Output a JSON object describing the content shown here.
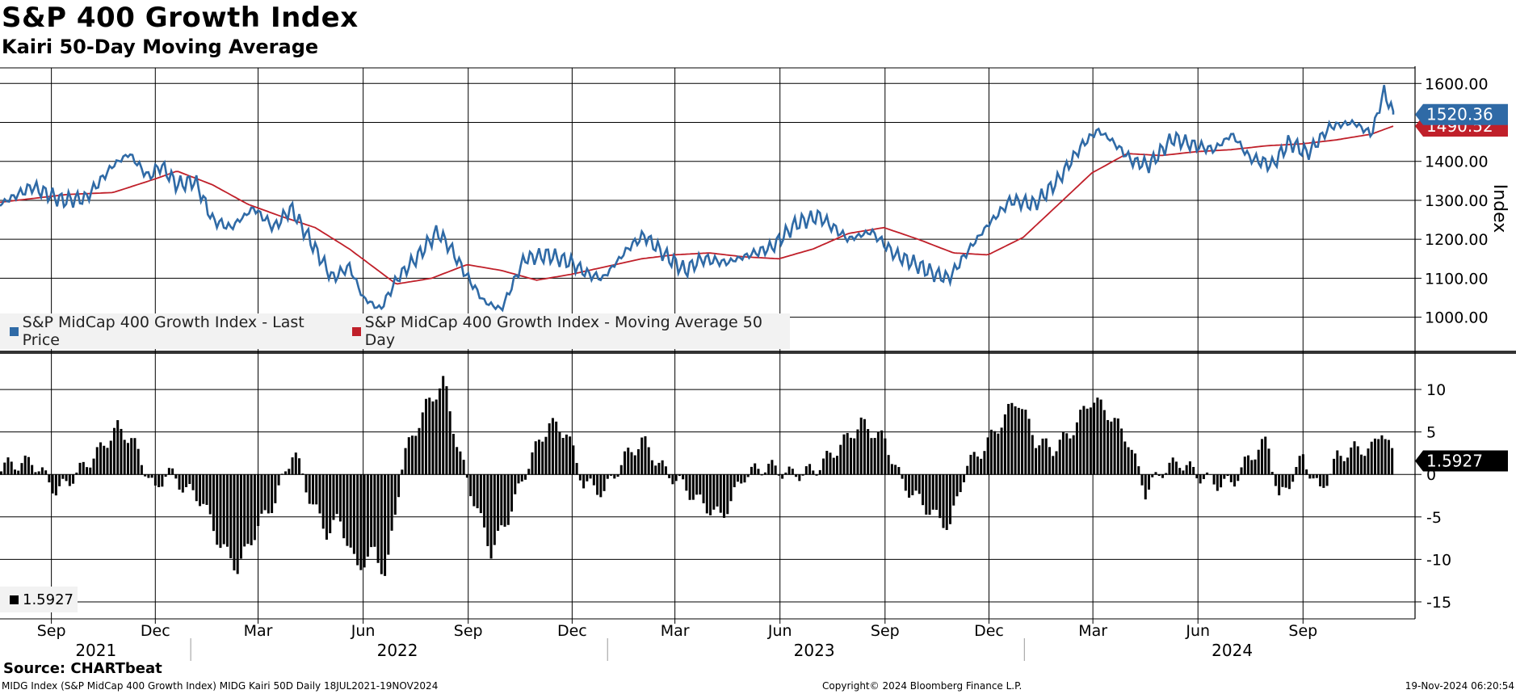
{
  "title": "S&P 400 Growth Index",
  "subtitle": "Kairi 50-Day Moving Average",
  "source": "Source: CHARTbeat",
  "footer": {
    "left": "MIDG Index (S&P MidCap 400 Growth Index) MIDG Kairi 50D  Daily 18JUL2021-19NOV2024",
    "center": "Copyright© 2024 Bloomberg Finance L.P.",
    "right": "19-Nov-2024 06:20:54"
  },
  "legend": {
    "price": "S&P MidCap 400 Growth Index - Last Price",
    "ma": "S&P MidCap 400 Growth Index - Moving Average 50 Day",
    "kairi": "1.5927"
  },
  "colors": {
    "price": "#2f6aa6",
    "ma": "#c0202a",
    "kairi": "#000000",
    "grid": "#000000"
  },
  "chart_data": [
    {
      "type": "line",
      "ylabel": "Index",
      "ylim": [
        910,
        1640
      ],
      "yticks": [
        "1000.00",
        "1100.00",
        "1200.00",
        "1300.00",
        "1400.00",
        "1500.00",
        "1600.00"
      ],
      "ytick_values": [
        1000,
        1100,
        1200,
        1300,
        1400,
        1500,
        1600
      ],
      "last_price_label": "1520.36",
      "ma_label": "1490.52",
      "last_price_value": 1520.36,
      "ma_value": 1490.52,
      "x_range": [
        "2021-07-18",
        "2024-11-19"
      ],
      "series": [
        {
          "name": "S&P MidCap 400 Growth Index - Last Price",
          "x": [
            "2021-07-18",
            "2021-08-15",
            "2021-09-10",
            "2021-10-01",
            "2021-10-25",
            "2021-11-08",
            "2021-11-25",
            "2021-12-06",
            "2021-12-20",
            "2022-01-05",
            "2022-01-20",
            "2022-02-05",
            "2022-02-25",
            "2022-03-15",
            "2022-03-30",
            "2022-04-15",
            "2022-05-05",
            "2022-05-20",
            "2022-06-01",
            "2022-06-16",
            "2022-07-01",
            "2022-07-20",
            "2022-08-05",
            "2022-08-16",
            "2022-09-01",
            "2022-09-15",
            "2022-09-30",
            "2022-10-20",
            "2022-11-10",
            "2022-11-30",
            "2022-12-15",
            "2022-12-28",
            "2023-01-20",
            "2023-02-02",
            "2023-02-20",
            "2023-03-10",
            "2023-03-25",
            "2023-04-15",
            "2023-05-05",
            "2023-05-25",
            "2023-06-15",
            "2023-07-05",
            "2023-07-31",
            "2023-08-20",
            "2023-09-10",
            "2023-09-25",
            "2023-10-15",
            "2023-10-27",
            "2023-11-15",
            "2023-12-01",
            "2023-12-20",
            "2024-01-10",
            "2024-01-30",
            "2024-02-20",
            "2024-03-05",
            "2024-03-15",
            "2024-04-05",
            "2024-04-19",
            "2024-05-10",
            "2024-05-30",
            "2024-06-15",
            "2024-07-01",
            "2024-07-16",
            "2024-08-05",
            "2024-08-20",
            "2024-09-05",
            "2024-09-25",
            "2024-10-15",
            "2024-10-31",
            "2024-11-11",
            "2024-11-19"
          ],
          "values": [
            1290,
            1335,
            1300,
            1305,
            1390,
            1420,
            1360,
            1390,
            1340,
            1350,
            1250,
            1230,
            1280,
            1230,
            1280,
            1200,
            1100,
            1130,
            1050,
            1020,
            1100,
            1160,
            1220,
            1180,
            1100,
            1040,
            1020,
            1150,
            1160,
            1140,
            1110,
            1100,
            1180,
            1210,
            1160,
            1120,
            1150,
            1140,
            1160,
            1180,
            1240,
            1260,
            1200,
            1220,
            1160,
            1140,
            1110,
            1100,
            1180,
            1240,
            1300,
            1290,
            1350,
            1440,
            1480,
            1460,
            1400,
            1390,
            1460,
            1440,
            1430,
            1470,
            1410,
            1390,
            1450,
            1420,
            1490,
            1500,
            1470,
            1580,
            1520.36
          ]
        },
        {
          "name": "S&P MidCap 400 Growth Index - Moving Average 50 Day",
          "x": [
            "2021-07-18",
            "2021-09-15",
            "2021-10-25",
            "2021-12-01",
            "2021-12-20",
            "2022-01-20",
            "2022-02-20",
            "2022-03-20",
            "2022-04-20",
            "2022-05-20",
            "2022-06-30",
            "2022-07-31",
            "2022-08-31",
            "2022-09-30",
            "2022-10-31",
            "2022-11-30",
            "2022-12-31",
            "2023-01-31",
            "2023-02-28",
            "2023-03-31",
            "2023-04-30",
            "2023-05-31",
            "2023-06-30",
            "2023-07-31",
            "2023-08-31",
            "2023-09-30",
            "2023-10-31",
            "2023-11-30",
            "2023-12-31",
            "2024-01-31",
            "2024-02-29",
            "2024-03-31",
            "2024-04-30",
            "2024-05-31",
            "2024-06-30",
            "2024-07-31",
            "2024-08-31",
            "2024-09-30",
            "2024-10-31",
            "2024-11-19"
          ],
          "values": [
            1295,
            1315,
            1320,
            1355,
            1375,
            1340,
            1290,
            1260,
            1230,
            1175,
            1085,
            1100,
            1135,
            1120,
            1095,
            1110,
            1130,
            1150,
            1160,
            1165,
            1155,
            1150,
            1175,
            1215,
            1230,
            1200,
            1165,
            1160,
            1205,
            1290,
            1370,
            1420,
            1415,
            1425,
            1430,
            1440,
            1445,
            1455,
            1470,
            1490.52
          ]
        }
      ]
    },
    {
      "type": "bar",
      "ylim": [
        -17,
        14
      ],
      "yticks": [
        "10",
        "5",
        "0",
        "-5",
        "-10",
        "-15"
      ],
      "ytick_values": [
        10,
        5,
        0,
        -5,
        -10,
        -15
      ],
      "last_value_label": "1.5927",
      "last_value": 1.5927,
      "x": [
        "2021-07-18",
        "2021-08-15",
        "2021-09-05",
        "2021-09-25",
        "2021-10-10",
        "2021-10-28",
        "2021-11-10",
        "2021-11-30",
        "2021-12-10",
        "2021-12-25",
        "2022-01-10",
        "2022-01-25",
        "2022-02-10",
        "2022-02-28",
        "2022-03-15",
        "2022-03-31",
        "2022-04-15",
        "2022-04-30",
        "2022-05-10",
        "2022-05-25",
        "2022-06-10",
        "2022-06-20",
        "2022-07-05",
        "2022-07-25",
        "2022-08-10",
        "2022-08-22",
        "2022-09-05",
        "2022-09-20",
        "2022-10-05",
        "2022-10-25",
        "2022-11-10",
        "2022-11-25",
        "2022-12-10",
        "2022-12-28",
        "2023-01-15",
        "2023-01-31",
        "2023-02-15",
        "2023-03-05",
        "2023-03-20",
        "2023-04-10",
        "2023-04-30",
        "2023-05-20",
        "2023-06-10",
        "2023-06-30",
        "2023-07-20",
        "2023-08-10",
        "2023-08-31",
        "2023-09-15",
        "2023-09-30",
        "2023-10-15",
        "2023-10-27",
        "2023-11-10",
        "2023-11-25",
        "2023-12-10",
        "2023-12-25",
        "2024-01-10",
        "2024-01-25",
        "2024-02-10",
        "2024-02-28",
        "2024-03-15",
        "2024-03-31",
        "2024-04-15",
        "2024-04-30",
        "2024-05-15",
        "2024-05-31",
        "2024-06-15",
        "2024-06-30",
        "2024-07-15",
        "2024-07-31",
        "2024-08-10",
        "2024-08-31",
        "2024-09-15",
        "2024-09-30",
        "2024-10-15",
        "2024-10-31",
        "2024-11-08",
        "2024-11-19"
      ],
      "values": [
        1,
        1.5,
        -2,
        0.5,
        2.5,
        5.5,
        4,
        -2,
        0.5,
        -1.5,
        -3,
        -8,
        -11,
        -6,
        -3,
        3,
        -3,
        -7,
        -5,
        -11,
        -9,
        -12,
        2,
        8,
        11,
        3,
        -3,
        -9,
        -5,
        2,
        6,
        5,
        -1,
        -2,
        2,
        4,
        1,
        -1,
        -3,
        -5,
        0,
        1,
        0,
        0.5,
        3,
        6,
        4,
        -1,
        -3,
        -5,
        -6,
        1,
        3,
        6,
        9,
        4,
        3,
        5,
        9,
        7,
        4,
        -2,
        0.5,
        1.5,
        0,
        -1,
        -1,
        2,
        4,
        -3,
        2,
        -2,
        2,
        3,
        3,
        5.5,
        1.5927
      ]
    }
  ],
  "x_axis": {
    "months": [
      {
        "label": "Sep",
        "date": "2021-09-01"
      },
      {
        "label": "Dec",
        "date": "2021-12-01"
      },
      {
        "label": "Mar",
        "date": "2022-03-01"
      },
      {
        "label": "Jun",
        "date": "2022-06-01"
      },
      {
        "label": "Sep",
        "date": "2022-09-01"
      },
      {
        "label": "Dec",
        "date": "2022-12-01"
      },
      {
        "label": "Mar",
        "date": "2023-03-01"
      },
      {
        "label": "Jun",
        "date": "2023-06-01"
      },
      {
        "label": "Sep",
        "date": "2023-09-01"
      },
      {
        "label": "Dec",
        "date": "2023-12-01"
      },
      {
        "label": "Mar",
        "date": "2024-03-01"
      },
      {
        "label": "Jun",
        "date": "2024-06-01"
      },
      {
        "label": "Sep",
        "date": "2024-09-01"
      }
    ],
    "years": [
      {
        "label": "2021",
        "date": "2021-10-10"
      },
      {
        "label": "2022",
        "date": "2022-07-01"
      },
      {
        "label": "2023",
        "date": "2023-07-01"
      },
      {
        "label": "2024",
        "date": "2024-07-01"
      }
    ],
    "year_dividers": [
      "2022-01-01",
      "2023-01-01",
      "2024-01-01"
    ]
  }
}
